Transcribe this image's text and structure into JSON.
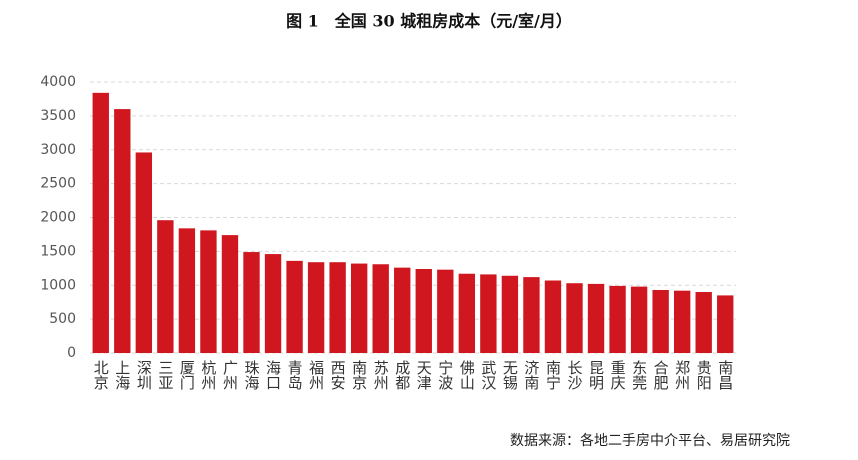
{
  "chart_data": {
    "type": "bar",
    "title": "图 1　全国 30 城租房成本（元/室/月）",
    "source": "数据来源：各地二手房中介平台、易居研究院",
    "categories": [
      "北京",
      "上海",
      "深圳",
      "三亚",
      "厦门",
      "杭州",
      "广州",
      "珠海",
      "海口",
      "青岛",
      "福州",
      "西安",
      "南京",
      "苏州",
      "成都",
      "天津",
      "宁波",
      "佛山",
      "武汉",
      "无锡",
      "济南",
      "南宁",
      "长沙",
      "昆明",
      "重庆",
      "东莞",
      "合肥",
      "郑州",
      "贵阳",
      "南昌"
    ],
    "values": [
      3840,
      3600,
      2960,
      1960,
      1840,
      1810,
      1740,
      1490,
      1460,
      1360,
      1340,
      1340,
      1320,
      1310,
      1260,
      1240,
      1230,
      1170,
      1160,
      1140,
      1120,
      1070,
      1030,
      1020,
      990,
      980,
      930,
      920,
      900,
      850
    ],
    "color": "#d0161f",
    "ylim": [
      0,
      4000
    ],
    "yticks": [
      0,
      500,
      1000,
      1500,
      2000,
      2500,
      3000,
      3500,
      4000
    ],
    "grid": true
  }
}
